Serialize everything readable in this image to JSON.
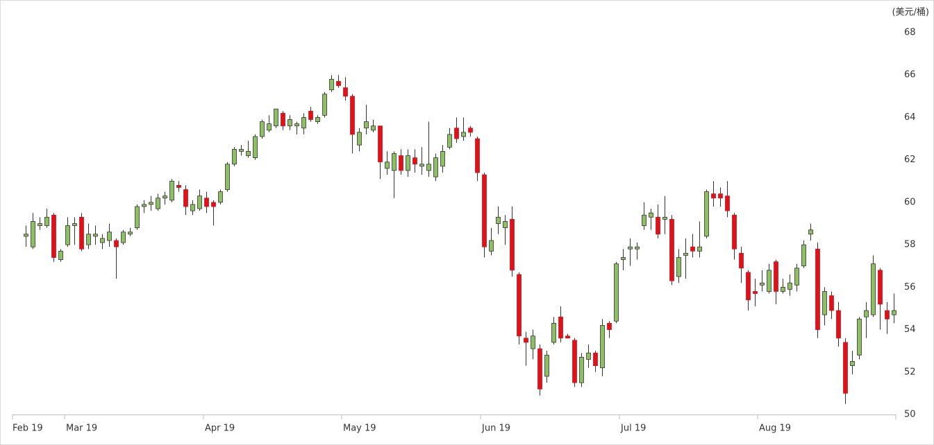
{
  "chart_data": {
    "type": "candlestick",
    "y_unit_label": "(美元/桶)",
    "up_color": "#8dc063",
    "down_color": "#d9141b",
    "outline_color": "#333333",
    "xlim": [
      -1.9,
      125.3
    ],
    "xticks": [
      {
        "value": -1.9,
        "label": "Feb 19"
      },
      {
        "value": 5.6,
        "label": "Mar 19"
      },
      {
        "value": 25.6,
        "label": "Apr 19"
      },
      {
        "value": 45.5,
        "label": "May 19"
      },
      {
        "value": 65.5,
        "label": "Jun 19"
      },
      {
        "value": 85.5,
        "label": "Jul 19"
      },
      {
        "value": 105.4,
        "label": "Aug 19"
      }
    ],
    "ylim": [
      50,
      68
    ],
    "yticks": [
      50,
      52,
      54,
      56,
      58,
      60,
      62,
      64,
      66,
      68
    ],
    "open": [
      58.4,
      57.9,
      58.9,
      58.9,
      59.4,
      57.3,
      58.0,
      58.9,
      59.3,
      58.0,
      58.4,
      58.1,
      58.2,
      58.2,
      58.1,
      58.5,
      58.8,
      59.8,
      59.9,
      59.7,
      60.2,
      60.1,
      60.8,
      60.6,
      59.6,
      59.7,
      60.2,
      60.0,
      60.0,
      60.6,
      61.8,
      62.4,
      62.2,
      62.1,
      63.1,
      63.4,
      63.6,
      64.2,
      63.6,
      63.6,
      63.5,
      64.3,
      63.8,
      64.1,
      65.3,
      65.7,
      65.4,
      65.0,
      62.7,
      63.5,
      63.4,
      63.6,
      61.6,
      61.5,
      62.2,
      61.5,
      62.1,
      61.7,
      61.5,
      61.2,
      61.7,
      62.6,
      63.5,
      63.1,
      63.5,
      63.0,
      61.3,
      57.7,
      59.0,
      58.8,
      59.2,
      56.6,
      53.6,
      53.1,
      53.1,
      51.8,
      53.4,
      54.6,
      53.7,
      53.5,
      51.5,
      52.6,
      52.9,
      52.2,
      54.3,
      54.4,
      57.3,
      57.8,
      57.8,
      58.9,
      59.3,
      59.3,
      59.2,
      59.2,
      56.5,
      57.5,
      57.9,
      57.7,
      58.4,
      60.4,
      60.4,
      60.3,
      59.4,
      57.6,
      56.7,
      55.8,
      56.1,
      55.8,
      57.2,
      55.8,
      55.9,
      56.1,
      57.0,
      58.5,
      57.8,
      54.7,
      55.6,
      54.9,
      53.4,
      52.3,
      52.8,
      54.6,
      54.7,
      56.8,
      54.9,
      54.7
    ],
    "high": [
      58.9,
      59.5,
      59.3,
      59.7,
      59.5,
      57.8,
      59.3,
      59.3,
      59.5,
      59.0,
      58.9,
      58.5,
      59.0,
      58.3,
      58.7,
      58.8,
      59.9,
      60.1,
      60.3,
      60.4,
      60.5,
      61.1,
      61.0,
      60.8,
      60.1,
      60.6,
      60.5,
      60.1,
      60.6,
      61.9,
      62.6,
      62.7,
      62.9,
      63.2,
      63.9,
      64.1,
      64.4,
      64.3,
      64.1,
      63.8,
      64.2,
      64.5,
      64.1,
      65.2,
      66.0,
      66.0,
      65.9,
      65.1,
      63.5,
      64.6,
      63.9,
      63.6,
      62.4,
      62.4,
      62.5,
      62.5,
      62.5,
      62.6,
      63.8,
      62.3,
      62.7,
      63.5,
      64.0,
      64.0,
      63.6,
      63.1,
      61.4,
      58.8,
      59.8,
      59.4,
      59.8,
      56.7,
      53.9,
      54.0,
      53.3,
      53.0,
      54.6,
      55.1,
      53.8,
      53.6,
      52.9,
      53.3,
      53.0,
      54.5,
      54.4,
      57.2,
      57.8,
      58.3,
      58.1,
      60.0,
      59.7,
      59.9,
      60.3,
      59.4,
      57.8,
      58.3,
      58.5,
      59.1,
      60.6,
      61.0,
      60.7,
      61.0,
      59.5,
      57.9,
      56.8,
      56.4,
      56.8,
      57.1,
      57.3,
      56.4,
      56.6,
      57.1,
      58.2,
      59.0,
      58.1,
      56.0,
      55.8,
      55.3,
      53.6,
      53.0,
      54.6,
      55.3,
      57.5,
      56.9,
      55.3,
      55.7
    ],
    "low": [
      57.9,
      57.8,
      58.7,
      58.8,
      57.2,
      57.2,
      57.9,
      58.0,
      57.7,
      57.8,
      58.0,
      57.8,
      57.9,
      56.4,
      58.0,
      58.4,
      58.7,
      59.5,
      59.6,
      59.6,
      59.9,
      60.0,
      60.5,
      59.4,
      59.4,
      59.6,
      59.5,
      58.9,
      59.9,
      60.5,
      61.7,
      62.2,
      62.1,
      62.0,
      63.0,
      63.3,
      63.5,
      63.4,
      63.4,
      63.2,
      63.2,
      63.8,
      63.7,
      64.0,
      65.2,
      65.4,
      64.8,
      62.3,
      62.4,
      63.2,
      63.3,
      61.1,
      61.3,
      60.2,
      61.3,
      61.2,
      61.4,
      61.3,
      61.2,
      61.0,
      61.4,
      62.5,
      62.8,
      62.9,
      63.1,
      61.0,
      57.4,
      57.5,
      58.5,
      58.0,
      56.5,
      53.3,
      52.3,
      52.6,
      50.9,
      51.5,
      53.3,
      53.4,
      53.6,
      51.3,
      51.3,
      52.2,
      52.0,
      51.8,
      53.6,
      54.3,
      56.8,
      57.0,
      57.3,
      58.7,
      58.7,
      58.3,
      58.5,
      56.1,
      56.2,
      56.4,
      57.4,
      57.4,
      58.3,
      59.8,
      59.8,
      59.3,
      57.3,
      56.2,
      54.9,
      55.1,
      55.8,
      55.7,
      55.2,
      55.7,
      55.6,
      55.8,
      56.9,
      58.2,
      53.6,
      54.2,
      54.5,
      53.2,
      50.5,
      51.9,
      52.6,
      53.6,
      54.6,
      54.0,
      53.8,
      54.3
    ],
    "close": [
      58.5,
      59.1,
      59.0,
      59.3,
      57.4,
      57.7,
      58.9,
      59.0,
      57.8,
      58.5,
      58.5,
      58.3,
      58.6,
      57.9,
      58.6,
      58.6,
      59.8,
      59.9,
      60.0,
      60.2,
      60.3,
      61.0,
      60.7,
      59.8,
      59.9,
      60.3,
      59.8,
      59.8,
      60.5,
      61.8,
      62.5,
      62.5,
      62.4,
      63.1,
      63.8,
      63.7,
      64.4,
      63.6,
      63.9,
      63.7,
      64.0,
      63.9,
      64.0,
      65.1,
      65.8,
      65.5,
      65.0,
      63.2,
      63.3,
      63.8,
      63.6,
      61.9,
      61.9,
      62.3,
      61.5,
      62.2,
      61.8,
      61.8,
      61.8,
      62.1,
      62.4,
      63.2,
      63.0,
      63.3,
      63.3,
      61.4,
      57.9,
      58.2,
      59.3,
      59.1,
      56.8,
      53.7,
      53.4,
      53.7,
      51.2,
      52.8,
      54.3,
      53.6,
      53.6,
      51.5,
      52.7,
      52.9,
      52.3,
      54.2,
      54.0,
      57.1,
      57.4,
      57.9,
      57.9,
      59.4,
      59.5,
      58.5,
      59.3,
      56.3,
      57.4,
      57.6,
      57.7,
      57.9,
      60.5,
      60.2,
      60.2,
      59.6,
      57.8,
      56.9,
      55.4,
      55.7,
      56.2,
      56.8,
      55.8,
      56.0,
      56.2,
      56.9,
      58.0,
      58.7,
      54.0,
      55.8,
      54.9,
      53.6,
      51.0,
      52.5,
      54.5,
      54.9,
      57.1,
      55.2,
      54.5,
      54.9
    ]
  }
}
